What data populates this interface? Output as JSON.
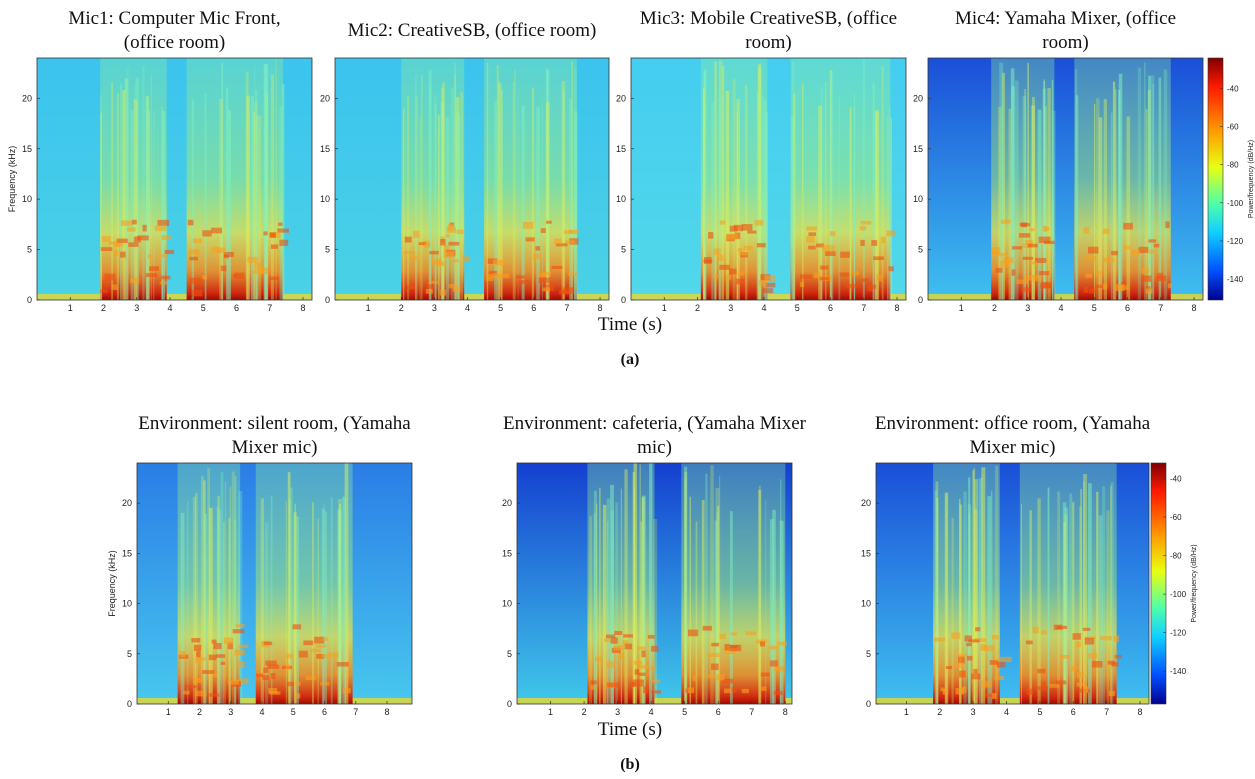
{
  "chart_data": [
    {
      "type": "spectrogram",
      "title": [
        "Mic1: Computer Mic Front,",
        "(office room)"
      ],
      "ylabel": "Frequency (kHz)",
      "xlim": [
        0,
        8.27
      ],
      "ylim": [
        0,
        24
      ],
      "xticks": [
        1,
        2,
        3,
        4,
        5,
        6,
        7,
        8
      ],
      "yticks": [
        0,
        5,
        10,
        15,
        20
      ],
      "background": [
        "#3cc3ee",
        "#4ad2e6"
      ],
      "active": [
        [
          1.9,
          3.9
        ],
        [
          4.5,
          7.4
        ]
      ]
    },
    {
      "type": "spectrogram",
      "title": [
        "Mic2: CreativeSB, (office room)"
      ],
      "xlim": [
        0,
        8.27
      ],
      "ylim": [
        0,
        24
      ],
      "xticks": [
        1,
        2,
        3,
        4,
        5,
        6,
        7,
        8
      ],
      "yticks": [
        0,
        5,
        10,
        15,
        20
      ],
      "background": [
        "#3cc3ee",
        "#4ad2e6"
      ],
      "active": [
        [
          2.0,
          3.9
        ],
        [
          4.5,
          7.3
        ]
      ]
    },
    {
      "type": "spectrogram",
      "title": [
        "Mic3: Mobile CreativeSB, (office",
        "room)"
      ],
      "xlim": [
        0,
        8.27
      ],
      "ylim": [
        0,
        24
      ],
      "xticks": [
        1,
        2,
        3,
        4,
        5,
        6,
        7,
        8
      ],
      "yticks": [
        0,
        5,
        10,
        15,
        20
      ],
      "background": [
        "#44cdf0",
        "#52d8ea"
      ],
      "active": [
        [
          2.1,
          4.1
        ],
        [
          4.8,
          7.8
        ]
      ]
    },
    {
      "type": "spectrogram",
      "title": [
        "Mic4: Yamaha Mixer, (office",
        "room)"
      ],
      "xlim": [
        0,
        8.27
      ],
      "ylim": [
        0,
        24
      ],
      "xticks": [
        1,
        2,
        3,
        4,
        5,
        6,
        7,
        8
      ],
      "yticks": [
        0,
        5,
        10,
        15,
        20
      ],
      "background": [
        "#1a4fd8",
        "#3fc0f0"
      ],
      "active": [
        [
          1.9,
          3.8
        ],
        [
          4.4,
          7.3
        ]
      ],
      "colorbar": {
        "label": "Power/frequency (dB/Hz)",
        "clim": [
          -151,
          -24
        ],
        "ticks": [
          -40,
          -60,
          -80,
          -100,
          -120,
          -140
        ]
      }
    },
    {
      "type": "spectrogram",
      "title": [
        "Environment: silent room, (Yamaha",
        "Mixer mic)"
      ],
      "ylabel": "Frequency (kHz)",
      "xlim": [
        0,
        8.8
      ],
      "ylim": [
        0,
        24
      ],
      "xticks": [
        1,
        2,
        3,
        4,
        5,
        6,
        7,
        8
      ],
      "yticks": [
        0,
        5,
        10,
        15,
        20
      ],
      "background": [
        "#2a7de6",
        "#48c8ee"
      ],
      "active": [
        [
          1.3,
          3.3
        ],
        [
          3.8,
          6.9
        ]
      ]
    },
    {
      "type": "spectrogram",
      "title": [
        "Environment: cafeteria, (Yamaha Mixer",
        "mic)"
      ],
      "xlim": [
        0,
        8.2
      ],
      "ylim": [
        0,
        24
      ],
      "xticks": [
        1,
        2,
        3,
        4,
        5,
        6,
        7,
        8
      ],
      "yticks": [
        0,
        5,
        10,
        15,
        20
      ],
      "background": [
        "#1440d0",
        "#40c8ea"
      ],
      "active": [
        [
          2.1,
          4.1
        ],
        [
          4.9,
          8.0
        ]
      ]
    },
    {
      "type": "spectrogram",
      "title": [
        "Environment: office room, (Yamaha",
        "Mixer mic)"
      ],
      "xlim": [
        0.09,
        8.27
      ],
      "ylim": [
        0,
        24
      ],
      "xticks": [
        1,
        2,
        3,
        4,
        5,
        6,
        7,
        8
      ],
      "yticks": [
        0,
        5,
        10,
        15,
        20
      ],
      "background": [
        "#1a4fd8",
        "#3fc0f0"
      ],
      "active": [
        [
          1.8,
          3.8
        ],
        [
          4.4,
          7.3
        ]
      ],
      "colorbar": {
        "label": "Power/frequency (dB/Hz)",
        "clim": [
          -157,
          -32
        ],
        "ticks": [
          -40,
          -60,
          -80,
          -100,
          -120,
          -140
        ]
      }
    }
  ],
  "figure": {
    "rows": [
      {
        "xlabel": "Time (s)",
        "caption": "(a)"
      },
      {
        "xlabel": "Time (s)",
        "caption": "(b)"
      }
    ]
  }
}
